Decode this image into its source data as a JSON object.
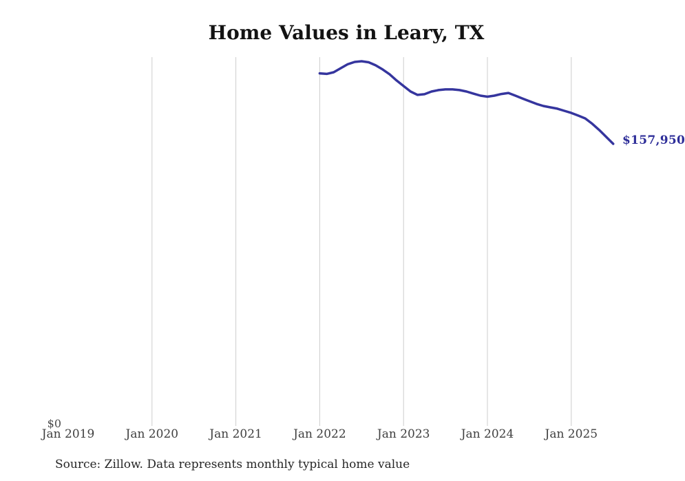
{
  "title": "Home Values in Leary, TX",
  "end_label": "$157,950",
  "y_zero_label": "$0",
  "source_note": "Source: Zillow. Data represents monthly typical home value",
  "colors": {
    "line": "#35359e",
    "grid": "#cccccc",
    "end_label_text": "#2e2e99",
    "axis_text": "#3f3f3f",
    "title_text": "#131313",
    "source_text": "#262626"
  },
  "chart_data": {
    "type": "line",
    "title": "Home Values in Leary, TX",
    "xlabel": "",
    "ylabel": "",
    "ylim": [
      0,
      207000
    ],
    "grid": "vertical-only",
    "legend": "none",
    "y_tick_labels": [
      "$0"
    ],
    "x_tick_labels": [
      "Jan 2019",
      "Jan 2020",
      "Jan 2021",
      "Jan 2022",
      "Jan 2023",
      "Jan 2024",
      "Jan 2025"
    ],
    "annotation": "$157,950",
    "x": [
      "2022-01",
      "2022-02",
      "2022-03",
      "2022-04",
      "2022-05",
      "2022-06",
      "2022-07",
      "2022-08",
      "2022-09",
      "2022-10",
      "2022-11",
      "2022-12",
      "2023-01",
      "2023-02",
      "2023-03",
      "2023-04",
      "2023-05",
      "2023-06",
      "2023-07",
      "2023-08",
      "2023-09",
      "2023-10",
      "2023-11",
      "2023-12",
      "2024-01",
      "2024-02",
      "2024-03",
      "2024-04",
      "2024-05",
      "2024-06",
      "2024-07",
      "2024-08",
      "2024-09",
      "2024-10",
      "2024-11",
      "2024-12",
      "2025-01",
      "2025-02",
      "2025-03",
      "2025-04",
      "2025-05",
      "2025-06",
      "2025-07"
    ],
    "values": [
      197500,
      197200,
      198100,
      200400,
      202600,
      203900,
      204300,
      203700,
      202000,
      199700,
      197000,
      193500,
      190400,
      187300,
      185400,
      185800,
      187300,
      188100,
      188500,
      188500,
      188100,
      187300,
      186100,
      185000,
      184400,
      185000,
      185900,
      186500,
      185000,
      183400,
      181900,
      180400,
      179200,
      178400,
      177700,
      176500,
      175300,
      173800,
      172200,
      169200,
      165700,
      161800,
      157950
    ]
  }
}
